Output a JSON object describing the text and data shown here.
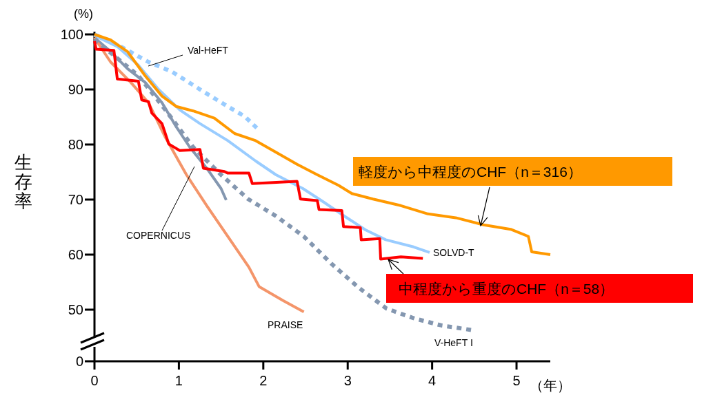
{
  "chart_data": {
    "type": "line",
    "ylabel": "生存率",
    "xlabel": "（年）",
    "annotations": [
      "(%)",
      "0"
    ],
    "xlim": [
      0,
      5.4
    ],
    "xticks": [
      0,
      1,
      2,
      3,
      4,
      5
    ],
    "ylim": [
      45,
      100.5
    ],
    "yticks": [
      50,
      60,
      70,
      80,
      90,
      100
    ],
    "series": [
      {
        "name": "Val-HeFT",
        "color": "#99ccff",
        "line_style": "dotted",
        "x": [
          0,
          0.31,
          0.64,
          0.92,
          1.25,
          1.58,
          1.78,
          1.95
        ],
        "values": [
          100,
          97.8,
          95.0,
          93.2,
          90.0,
          86.9,
          85.1,
          82.6
        ]
      },
      {
        "name": "SOLVD-T",
        "color": "#99ccff",
        "line_style": "solid",
        "x": [
          0,
          0.27,
          0.52,
          0.76,
          1.01,
          1.25,
          1.58,
          1.91,
          2.15,
          2.47,
          2.72,
          2.96,
          3.21,
          3.45,
          3.78,
          3.97
        ],
        "values": [
          99.8,
          97.8,
          94.4,
          90.0,
          86.3,
          83.8,
          80.7,
          77.0,
          74.5,
          72.0,
          69.5,
          67.0,
          64.5,
          62.7,
          61.4,
          60.4
        ]
      },
      {
        "name": "COPERNICUS",
        "color": "#8497b0",
        "line_style": "solid",
        "x": [
          0,
          0.19,
          0.39,
          0.6,
          0.8,
          0.97,
          1.13,
          1.33,
          1.5,
          1.56
        ],
        "values": [
          99.4,
          96.9,
          93.8,
          91.3,
          87.6,
          83.2,
          79.5,
          75.7,
          72.0,
          69.9
        ]
      },
      {
        "name": "PRAISE",
        "color": "#f4956a",
        "line_style": "solid",
        "x": [
          0,
          0.19,
          0.43,
          0.64,
          0.84,
          1.09,
          1.33,
          1.58,
          1.83,
          1.95,
          2.23,
          2.48
        ],
        "values": [
          99.4,
          95.0,
          91.3,
          87.6,
          81.3,
          74.5,
          68.9,
          63.3,
          57.7,
          54.2,
          51.7,
          49.6
        ]
      },
      {
        "name": "V-HeFT Ⅰ",
        "color": "#8497b0",
        "line_style": "dotted",
        "x": [
          0,
          0.52,
          0.84,
          1.17,
          1.5,
          1.82,
          2.15,
          2.48,
          2.81,
          3.13,
          3.46,
          3.79,
          4.12,
          4.47
        ],
        "values": [
          99.1,
          92.5,
          86.3,
          79.5,
          74.5,
          70.1,
          67.0,
          63.3,
          58.3,
          54.0,
          50.2,
          48.4,
          47.1,
          46.3
        ]
      },
      {
        "name": "軽度から中程度のCHF（n＝316）",
        "color": "#ff9900",
        "line_style": "solid",
        "x": [
          0,
          0.19,
          0.39,
          0.6,
          0.8,
          0.97,
          1.17,
          1.42,
          1.66,
          1.91,
          2.15,
          2.4,
          2.64,
          2.89,
          3.05,
          3.3,
          3.63,
          3.95,
          4.28,
          4.61,
          4.93,
          5.14,
          5.18,
          5.4
        ],
        "values": [
          100,
          99.0,
          96.9,
          92.5,
          88.8,
          86.9,
          86.1,
          84.8,
          82.0,
          80.7,
          78.6,
          76.4,
          74.5,
          72.6,
          71.1,
          70.1,
          68.9,
          67.4,
          66.7,
          65.4,
          64.6,
          63.3,
          60.5,
          60.0
        ]
      },
      {
        "name": "中程度から重度のCHF（n＝58）",
        "color": "#ff0000",
        "line_style": "solid",
        "x": [
          0,
          0.02,
          0.23,
          0.27,
          0.52,
          0.56,
          0.64,
          0.68,
          0.8,
          0.88,
          1.01,
          1.25,
          1.29,
          1.54,
          1.58,
          1.83,
          1.87,
          2.4,
          2.44,
          2.64,
          2.66,
          2.93,
          2.95,
          3.15,
          3.16,
          3.38,
          3.39,
          3.63,
          3.89
        ],
        "values": [
          98.8,
          97.3,
          97.1,
          91.9,
          91.5,
          88.1,
          87.8,
          85.7,
          83.8,
          80.1,
          78.9,
          79.1,
          75.7,
          75.1,
          74.8,
          74.8,
          72.9,
          73.3,
          70.1,
          69.8,
          68.2,
          68.0,
          65.1,
          64.9,
          62.7,
          62.9,
          59.2,
          59.6,
          59.3
        ]
      }
    ]
  }
}
